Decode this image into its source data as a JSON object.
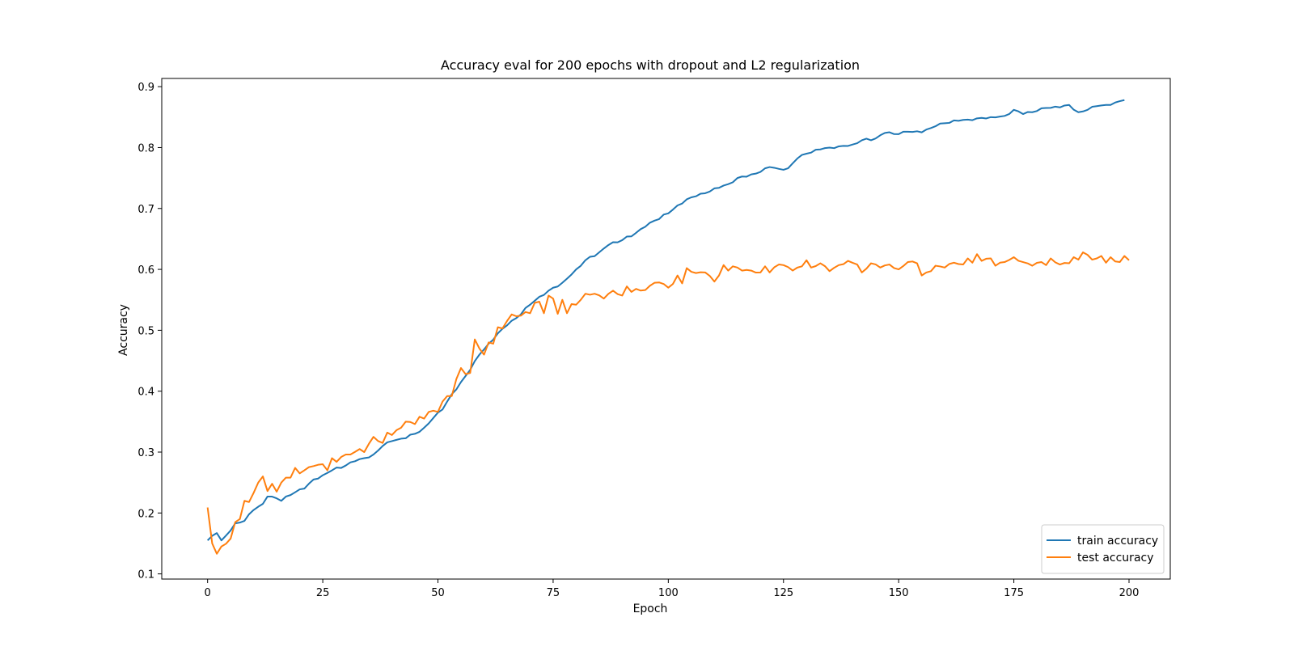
{
  "chart_data": {
    "type": "line",
    "title": "Accuracy eval for 200 epochs with dropout and L2 regularization",
    "xlabel": "Epoch",
    "ylabel": "Accuracy",
    "xlim": [
      -9.95,
      208.95
    ],
    "ylim": [
      0.0915,
      0.9135
    ],
    "xticks": [
      0,
      25,
      50,
      75,
      100,
      125,
      150,
      175,
      200
    ],
    "yticks": [
      0.1,
      0.2,
      0.3,
      0.4,
      0.5,
      0.6,
      0.7,
      0.8,
      0.9
    ],
    "ytick_labels": [
      "0.1",
      "0.2",
      "0.3",
      "0.4",
      "0.5",
      "0.6",
      "0.7",
      "0.8",
      "0.9"
    ],
    "grid": false,
    "legend": "lower-right",
    "series": [
      {
        "name": "train accuracy",
        "color": "#1f77b4",
        "keypoints": [
          [
            0,
            0.155
          ],
          [
            2,
            0.167
          ],
          [
            3,
            0.155
          ],
          [
            4,
            0.163
          ],
          [
            6,
            0.183
          ],
          [
            8,
            0.187
          ],
          [
            10,
            0.205
          ],
          [
            12,
            0.215
          ],
          [
            13,
            0.227
          ],
          [
            15,
            0.224
          ],
          [
            16,
            0.22
          ],
          [
            17,
            0.227
          ],
          [
            19,
            0.234
          ],
          [
            21,
            0.24
          ],
          [
            23,
            0.255
          ],
          [
            25,
            0.262
          ],
          [
            27,
            0.27
          ],
          [
            30,
            0.278
          ],
          [
            32,
            0.285
          ],
          [
            34,
            0.29
          ],
          [
            36,
            0.296
          ],
          [
            38,
            0.31
          ],
          [
            40,
            0.318
          ],
          [
            42,
            0.322
          ],
          [
            45,
            0.33
          ],
          [
            47,
            0.34
          ],
          [
            49,
            0.356
          ],
          [
            51,
            0.37
          ],
          [
            53,
            0.395
          ],
          [
            55,
            0.415
          ],
          [
            57,
            0.435
          ],
          [
            59,
            0.46
          ],
          [
            61,
            0.478
          ],
          [
            63,
            0.495
          ],
          [
            65,
            0.508
          ],
          [
            67,
            0.52
          ],
          [
            70,
            0.542
          ],
          [
            72,
            0.555
          ],
          [
            74,
            0.565
          ],
          [
            77,
            0.578
          ],
          [
            80,
            0.6
          ],
          [
            82,
            0.615
          ],
          [
            85,
            0.628
          ],
          [
            87,
            0.64
          ],
          [
            90,
            0.648
          ],
          [
            93,
            0.66
          ],
          [
            95,
            0.67
          ],
          [
            97,
            0.68
          ],
          [
            100,
            0.692
          ],
          [
            102,
            0.705
          ],
          [
            104,
            0.715
          ],
          [
            106,
            0.72
          ],
          [
            108,
            0.725
          ],
          [
            110,
            0.733
          ],
          [
            113,
            0.74
          ],
          [
            115,
            0.75
          ],
          [
            118,
            0.756
          ],
          [
            120,
            0.76
          ],
          [
            122,
            0.768
          ],
          [
            124,
            0.765
          ],
          [
            126,
            0.766
          ],
          [
            128,
            0.782
          ],
          [
            130,
            0.79
          ],
          [
            133,
            0.797
          ],
          [
            135,
            0.8
          ],
          [
            137,
            0.802
          ],
          [
            140,
            0.805
          ],
          [
            142,
            0.812
          ],
          [
            145,
            0.815
          ],
          [
            147,
            0.824
          ],
          [
            150,
            0.822
          ],
          [
            152,
            0.826
          ],
          [
            155,
            0.825
          ],
          [
            158,
            0.835
          ],
          [
            160,
            0.84
          ],
          [
            163,
            0.844
          ],
          [
            165,
            0.846
          ],
          [
            167,
            0.848
          ],
          [
            170,
            0.85
          ],
          [
            173,
            0.852
          ],
          [
            175,
            0.862
          ],
          [
            177,
            0.855
          ],
          [
            180,
            0.86
          ],
          [
            182,
            0.865
          ],
          [
            185,
            0.866
          ],
          [
            187,
            0.87
          ],
          [
            189,
            0.858
          ],
          [
            191,
            0.862
          ],
          [
            193,
            0.868
          ],
          [
            195,
            0.87
          ],
          [
            197,
            0.874
          ],
          [
            199,
            0.878
          ]
        ]
      },
      {
        "name": "test accuracy",
        "color": "#ff7f0e",
        "keypoints": [
          [
            0,
            0.209
          ],
          [
            1,
            0.15
          ],
          [
            2,
            0.133
          ],
          [
            3,
            0.145
          ],
          [
            5,
            0.158
          ],
          [
            6,
            0.185
          ],
          [
            7,
            0.19
          ],
          [
            8,
            0.22
          ],
          [
            9,
            0.218
          ],
          [
            11,
            0.25
          ],
          [
            12,
            0.26
          ],
          [
            13,
            0.236
          ],
          [
            14,
            0.248
          ],
          [
            15,
            0.235
          ],
          [
            16,
            0.25
          ],
          [
            17,
            0.258
          ],
          [
            18,
            0.258
          ],
          [
            19,
            0.274
          ],
          [
            20,
            0.265
          ],
          [
            21,
            0.27
          ],
          [
            23,
            0.277
          ],
          [
            25,
            0.28
          ],
          [
            26,
            0.27
          ],
          [
            27,
            0.29
          ],
          [
            28,
            0.284
          ],
          [
            29,
            0.292
          ],
          [
            31,
            0.296
          ],
          [
            33,
            0.305
          ],
          [
            34,
            0.3
          ],
          [
            36,
            0.325
          ],
          [
            38,
            0.315
          ],
          [
            39,
            0.332
          ],
          [
            40,
            0.328
          ],
          [
            42,
            0.34
          ],
          [
            43,
            0.35
          ],
          [
            45,
            0.346
          ],
          [
            46,
            0.358
          ],
          [
            47,
            0.355
          ],
          [
            48,
            0.366
          ],
          [
            50,
            0.366
          ],
          [
            51,
            0.383
          ],
          [
            52,
            0.392
          ],
          [
            53,
            0.392
          ],
          [
            54,
            0.42
          ],
          [
            55,
            0.438
          ],
          [
            56,
            0.428
          ],
          [
            57,
            0.43
          ],
          [
            58,
            0.485
          ],
          [
            59,
            0.47
          ],
          [
            60,
            0.46
          ],
          [
            61,
            0.48
          ],
          [
            62,
            0.478
          ],
          [
            63,
            0.505
          ],
          [
            64,
            0.503
          ],
          [
            66,
            0.526
          ],
          [
            68,
            0.524
          ],
          [
            69,
            0.53
          ],
          [
            70,
            0.528
          ],
          [
            71,
            0.545
          ],
          [
            72,
            0.547
          ],
          [
            73,
            0.528
          ],
          [
            74,
            0.557
          ],
          [
            75,
            0.552
          ],
          [
            76,
            0.527
          ],
          [
            77,
            0.55
          ],
          [
            78,
            0.528
          ],
          [
            79,
            0.543
          ],
          [
            80,
            0.542
          ],
          [
            82,
            0.56
          ],
          [
            84,
            0.56
          ],
          [
            86,
            0.552
          ],
          [
            88,
            0.565
          ],
          [
            90,
            0.557
          ],
          [
            91,
            0.572
          ],
          [
            92,
            0.563
          ],
          [
            93,
            0.568
          ],
          [
            95,
            0.566
          ],
          [
            97,
            0.578
          ],
          [
            99,
            0.576
          ],
          [
            100,
            0.57
          ],
          [
            101,
            0.576
          ],
          [
            102,
            0.59
          ],
          [
            103,
            0.577
          ],
          [
            104,
            0.602
          ],
          [
            106,
            0.594
          ],
          [
            108,
            0.595
          ],
          [
            110,
            0.58
          ],
          [
            111,
            0.59
          ],
          [
            112,
            0.607
          ],
          [
            113,
            0.598
          ],
          [
            114,
            0.605
          ],
          [
            116,
            0.598
          ],
          [
            118,
            0.598
          ],
          [
            120,
            0.595
          ],
          [
            121,
            0.605
          ],
          [
            122,
            0.595
          ],
          [
            124,
            0.608
          ],
          [
            125,
            0.607
          ],
          [
            127,
            0.598
          ],
          [
            129,
            0.605
          ],
          [
            130,
            0.615
          ],
          [
            131,
            0.603
          ],
          [
            133,
            0.61
          ],
          [
            135,
            0.597
          ],
          [
            137,
            0.607
          ],
          [
            139,
            0.614
          ],
          [
            141,
            0.608
          ],
          [
            142,
            0.595
          ],
          [
            144,
            0.61
          ],
          [
            146,
            0.603
          ],
          [
            148,
            0.608
          ],
          [
            150,
            0.6
          ],
          [
            152,
            0.612
          ],
          [
            154,
            0.61
          ],
          [
            155,
            0.59
          ],
          [
            157,
            0.597
          ],
          [
            158,
            0.606
          ],
          [
            160,
            0.603
          ],
          [
            162,
            0.611
          ],
          [
            164,
            0.608
          ],
          [
            165,
            0.618
          ],
          [
            166,
            0.611
          ],
          [
            167,
            0.625
          ],
          [
            168,
            0.614
          ],
          [
            170,
            0.618
          ],
          [
            171,
            0.606
          ],
          [
            173,
            0.612
          ],
          [
            175,
            0.62
          ],
          [
            177,
            0.612
          ],
          [
            179,
            0.606
          ],
          [
            181,
            0.612
          ],
          [
            182,
            0.607
          ],
          [
            183,
            0.618
          ],
          [
            185,
            0.608
          ],
          [
            187,
            0.61
          ],
          [
            188,
            0.62
          ],
          [
            189,
            0.616
          ],
          [
            190,
            0.628
          ],
          [
            192,
            0.616
          ],
          [
            194,
            0.622
          ],
          [
            195,
            0.611
          ],
          [
            196,
            0.62
          ],
          [
            197,
            0.613
          ],
          [
            198,
            0.612
          ],
          [
            199,
            0.622
          ],
          [
            200,
            0.615
          ]
        ]
      }
    ]
  }
}
